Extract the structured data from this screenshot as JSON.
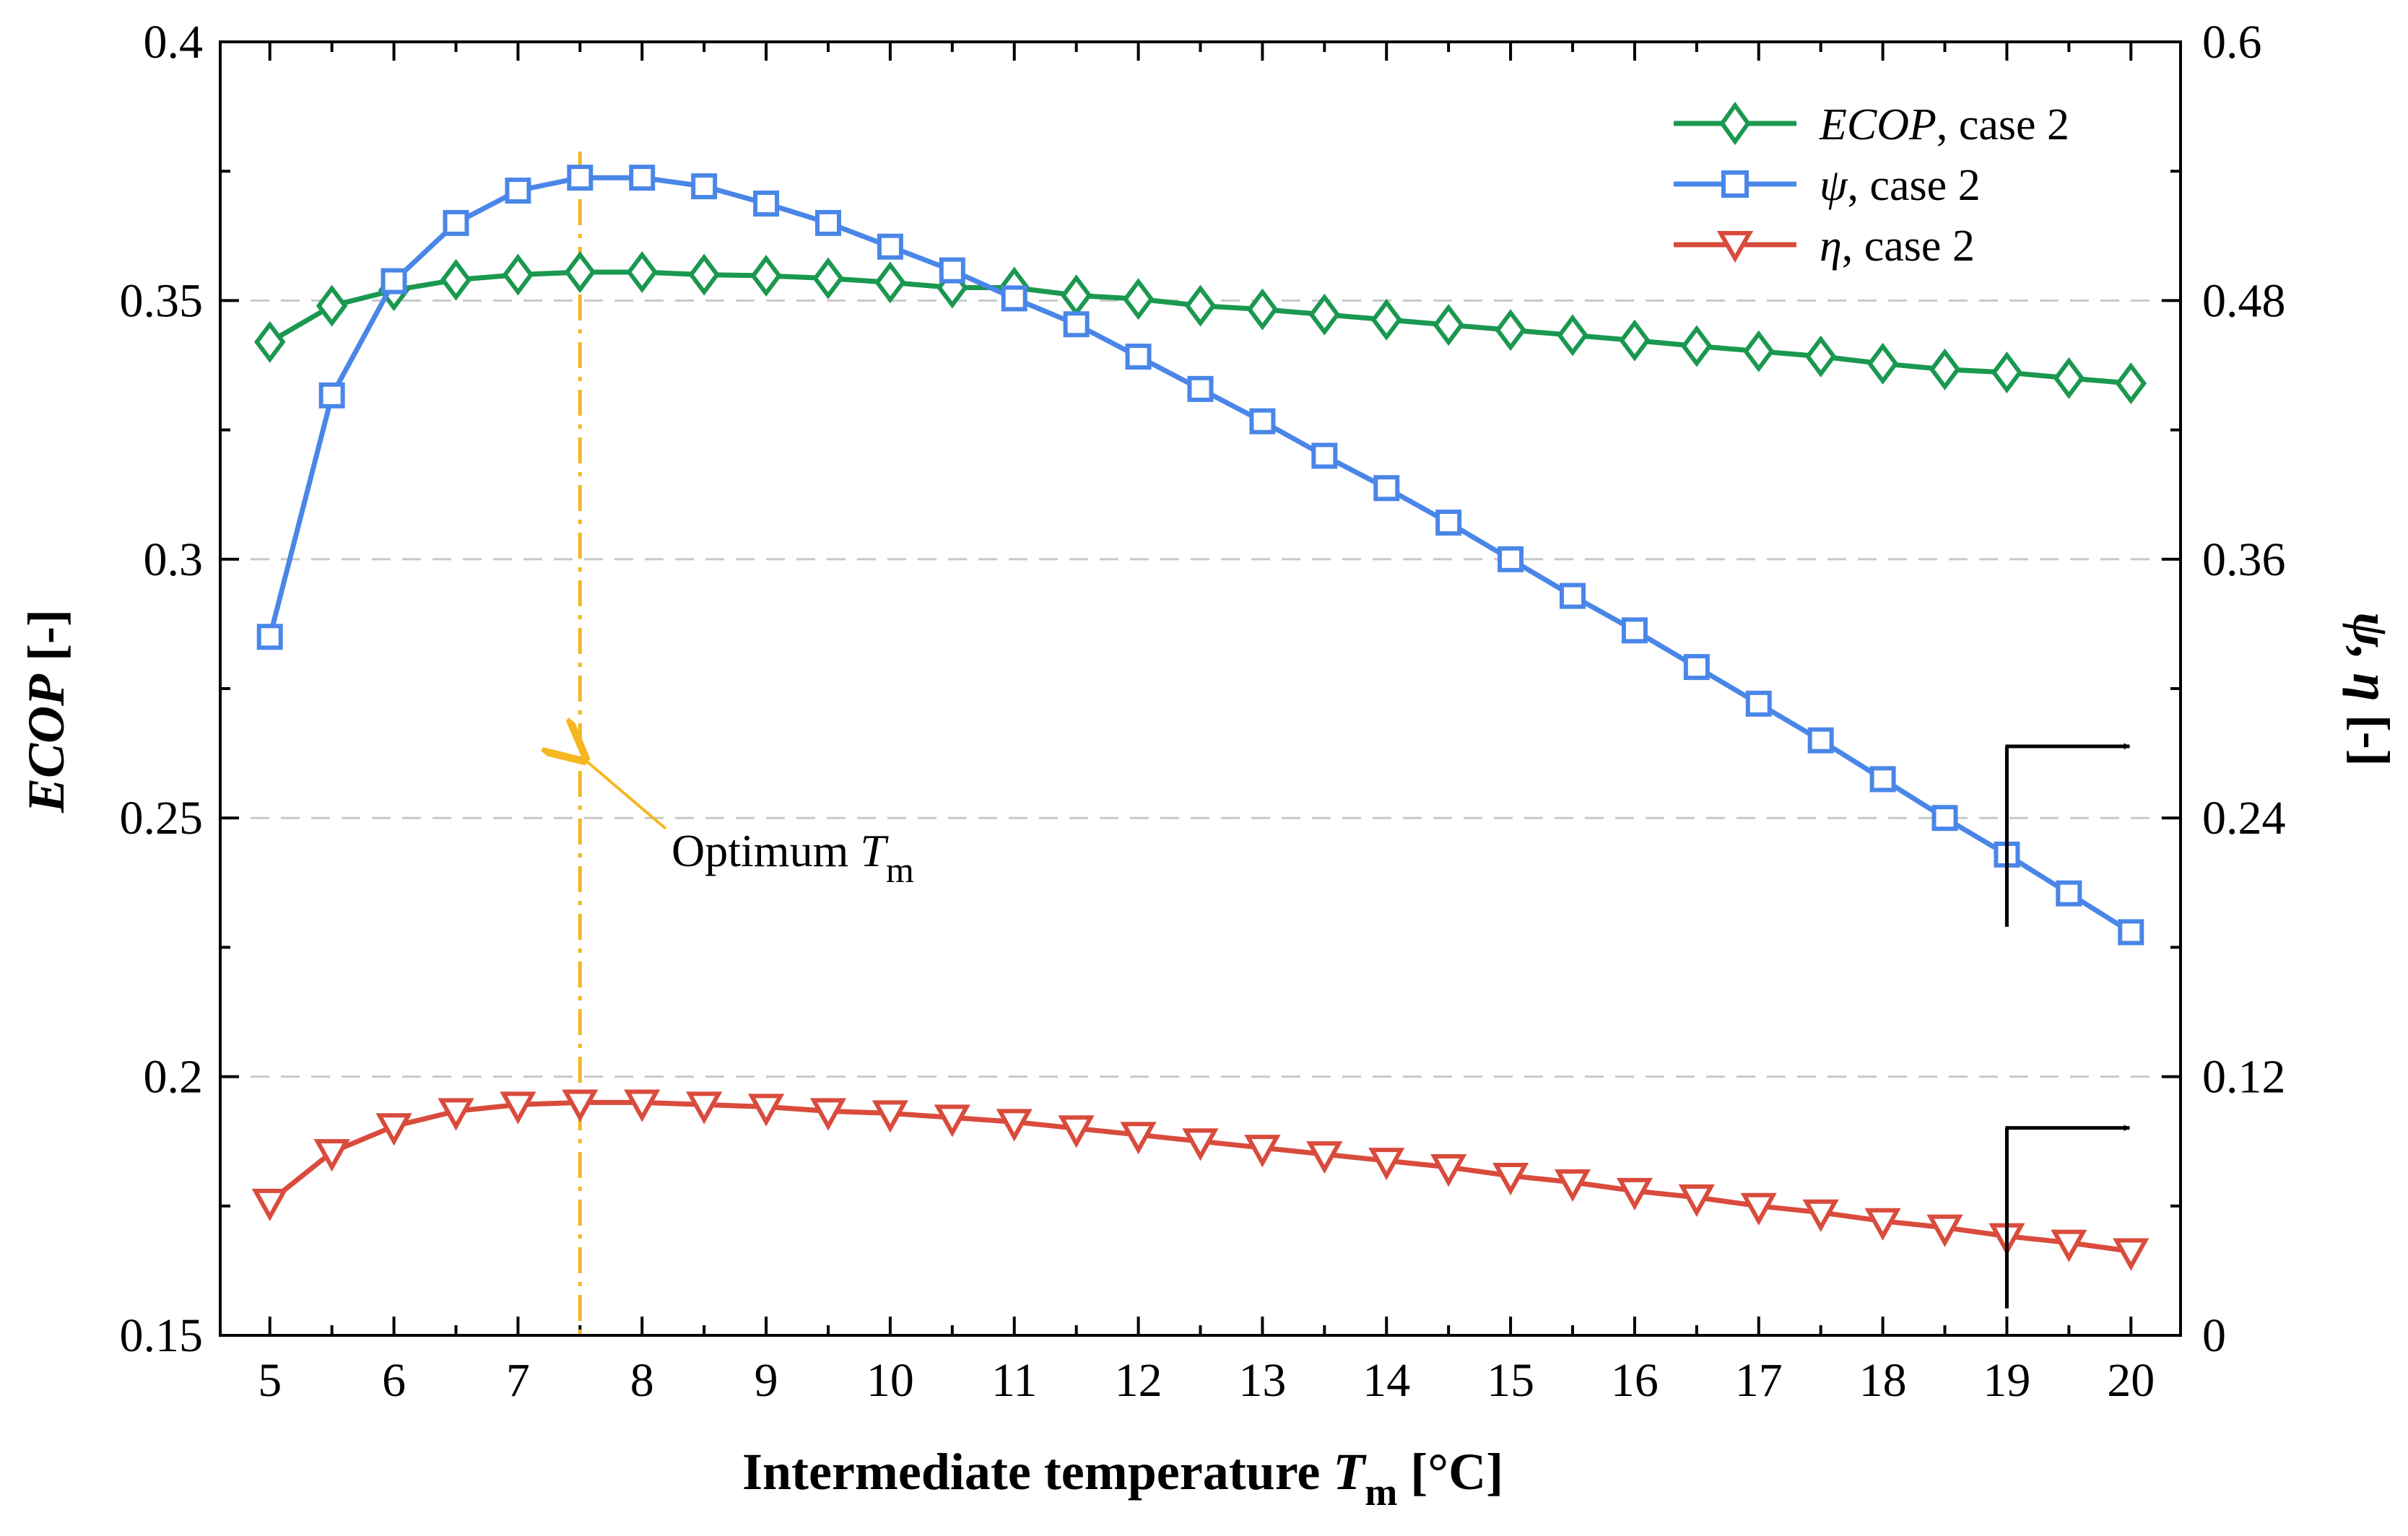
{
  "chart_data": {
    "type": "line",
    "x": [
      5,
      5.5,
      6,
      6.5,
      7,
      7.5,
      8,
      8.5,
      9,
      9.5,
      10,
      10.5,
      11,
      11.5,
      12,
      12.5,
      13,
      13.5,
      14,
      14.5,
      15,
      15.5,
      16,
      16.5,
      17,
      17.5,
      18,
      18.5,
      19,
      19.5,
      20
    ],
    "xlim": [
      4.6,
      20.4
    ],
    "xticks": [
      "5",
      "6",
      "7",
      "8",
      "9",
      "10",
      "11",
      "12",
      "13",
      "14",
      "15",
      "16",
      "17",
      "18",
      "19",
      "20"
    ],
    "xlabel": {
      "main": "Intermediate temperature ",
      "var": "T",
      "sub": "m",
      "unit": " [°C]"
    },
    "ylabel_left": {
      "var": "ECOP",
      "unit": " [-]"
    },
    "ylabel_right": {
      "var": "ψ, η",
      "unit": " [-]"
    },
    "ylim_left": [
      0.15,
      0.4
    ],
    "ylim_right": [
      0,
      0.6
    ],
    "yticks_left": [
      "0.15",
      "0.2",
      "0.25",
      "0.3",
      "0.35",
      "0.4"
    ],
    "yticks_right": [
      "0",
      "0.12",
      "0.24",
      "0.36",
      "0.48",
      "0.6"
    ],
    "grid": "horizontal dashed",
    "legend_position": "top-right",
    "series": [
      {
        "name": "ECOP",
        "suffix": ", case 2",
        "axis": "left",
        "marker": "diamond",
        "color": "#1a9850",
        "values": [
          0.342,
          0.349,
          0.352,
          0.354,
          0.355,
          0.3555,
          0.3555,
          0.355,
          0.3548,
          0.3543,
          0.3535,
          0.3525,
          0.3525,
          0.351,
          0.3503,
          0.349,
          0.3483,
          0.3473,
          0.3463,
          0.3453,
          0.3443,
          0.3433,
          0.3423,
          0.3412,
          0.3402,
          0.3392,
          0.3378,
          0.3367,
          0.3361,
          0.335,
          0.334
        ]
      },
      {
        "name": "ψ",
        "suffix": ", case 2",
        "axis": "right",
        "marker": "square",
        "color": "#4a86e8",
        "values": [
          0.324,
          0.436,
          0.489,
          0.516,
          0.531,
          0.537,
          0.537,
          0.533,
          0.525,
          0.516,
          0.505,
          0.494,
          0.481,
          0.469,
          0.454,
          0.439,
          0.424,
          0.408,
          0.393,
          0.377,
          0.36,
          0.343,
          0.327,
          0.31,
          0.293,
          0.276,
          0.258,
          0.24,
          0.223,
          0.205,
          0.187
        ]
      },
      {
        "name": "η",
        "suffix": ", case 2",
        "axis": "right",
        "marker": "triangle-down",
        "color": "#d94b3c",
        "values": [
          0.062,
          0.085,
          0.097,
          0.104,
          0.107,
          0.108,
          0.108,
          0.107,
          0.106,
          0.104,
          0.103,
          0.101,
          0.099,
          0.096,
          0.093,
          0.09,
          0.087,
          0.084,
          0.081,
          0.078,
          0.074,
          0.071,
          0.067,
          0.064,
          0.06,
          0.057,
          0.053,
          0.05,
          0.046,
          0.043,
          0.039
        ]
      }
    ],
    "annotation": {
      "text": "Optimum ",
      "var": "T",
      "sub": "m",
      "x": 7.5,
      "color": "#f5b71f"
    },
    "axis_arrows": [
      {
        "series": "ψ",
        "x": 19,
        "points_to": "right"
      },
      {
        "series": "η",
        "x": 19,
        "points_to": "right"
      }
    ]
  }
}
